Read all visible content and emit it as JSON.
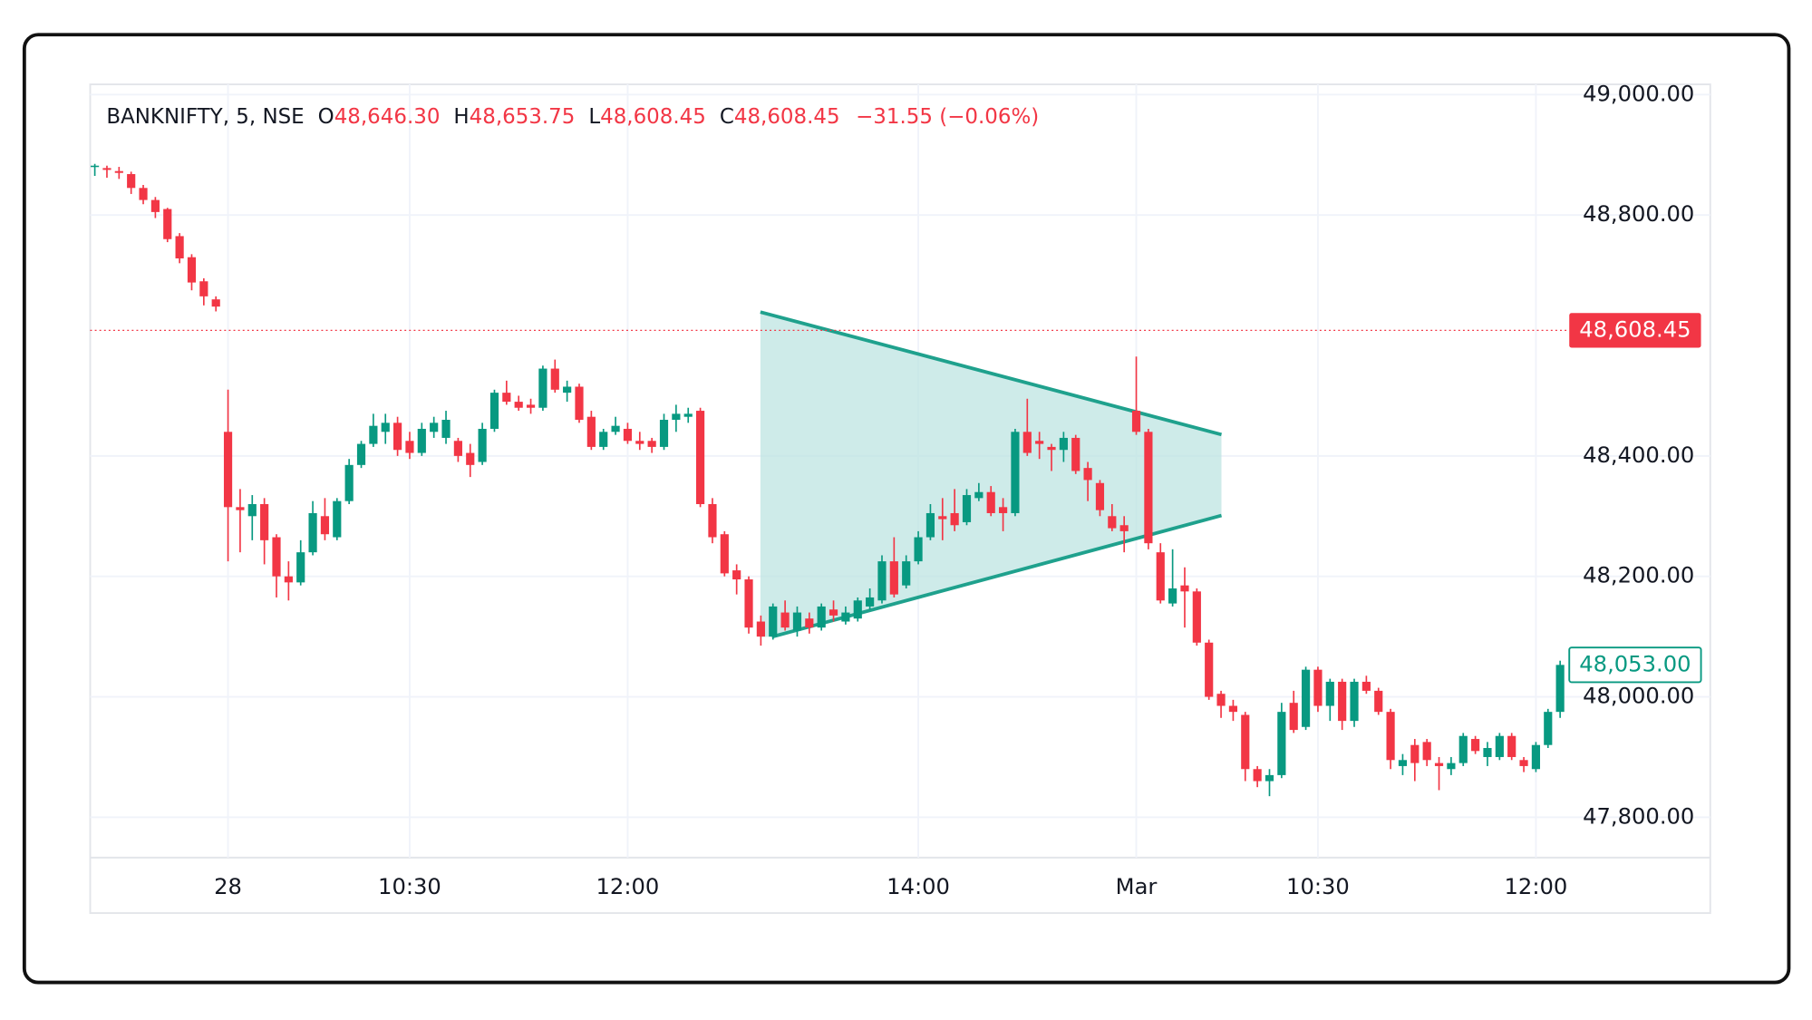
{
  "chart_data": {
    "type": "candlestick",
    "header": {
      "symbol": "BANKNIFTY, 5, NSE",
      "open_label": "O",
      "open": "48,646.30",
      "high_label": "H",
      "high": "48,653.75",
      "low_label": "L",
      "low": "48,608.45",
      "close_label": "C",
      "close": "48,608.45",
      "change": "−31.55 (−0.06%)"
    },
    "categories": [
      null,
      null,
      null,
      null,
      null,
      null,
      null,
      null,
      null,
      null,
      null,
      "28",
      null,
      null,
      null,
      null,
      null,
      null,
      null,
      null,
      null,
      null,
      null,
      null,
      null,
      null,
      "10:30",
      null,
      null,
      null,
      null,
      null,
      null,
      null,
      null,
      null,
      null,
      null,
      null,
      null,
      null,
      null,
      null,
      null,
      "12:00",
      null,
      null,
      null,
      null,
      null,
      null,
      null,
      null,
      null,
      null,
      null,
      null,
      null,
      null,
      null,
      null,
      null,
      null,
      null,
      null,
      null,
      null,
      null,
      "14:00",
      null,
      null,
      null,
      null,
      null,
      null,
      null,
      null,
      null,
      null,
      null,
      null,
      null,
      null,
      null,
      null,
      null,
      "Mar",
      null,
      null,
      null,
      null,
      null,
      null,
      null,
      null,
      null,
      null,
      null,
      null,
      null,
      null,
      "10:30",
      null,
      null,
      null,
      null,
      null,
      null,
      null,
      null,
      null,
      null,
      null,
      null,
      null,
      null,
      null,
      null,
      null,
      "12:00",
      null,
      null
    ],
    "open": [
      48880,
      48878,
      48873,
      48868,
      48845,
      48825,
      48810,
      48765,
      48730,
      48690,
      48660,
      48440,
      48315,
      48300,
      48320,
      48265,
      48200,
      48190,
      48240,
      48300,
      48265,
      48325,
      48385,
      48420,
      48440,
      48455,
      48425,
      48405,
      48440,
      48430,
      48425,
      48405,
      48390,
      48445,
      48505,
      48490,
      48485,
      48480,
      48545,
      48505,
      48515,
      48465,
      48415,
      48440,
      48445,
      48425,
      48425,
      48415,
      48460,
      48465,
      48475,
      48320,
      48270,
      48210,
      48195,
      48125,
      48100,
      48140,
      48110,
      48130,
      48115,
      48145,
      48125,
      48130,
      48150,
      48160,
      48225,
      48185,
      48225,
      48265,
      48300,
      48305,
      48290,
      48330,
      48340,
      48315,
      48305,
      48440,
      48425,
      48415,
      48410,
      48430,
      48380,
      48355,
      48300,
      48285,
      48475,
      48440,
      48240,
      48155,
      48185,
      48175,
      48090,
      48005,
      47985,
      47970,
      47880,
      47860,
      47870,
      47990,
      47950,
      48045,
      47985,
      48025,
      47960,
      48025,
      48010,
      47975,
      47885,
      47920,
      47925,
      47890,
      47880,
      47890,
      47930,
      47900,
      47900,
      47935,
      47895,
      47880,
      47920,
      47975
    ],
    "high": [
      48885,
      48882,
      48880,
      48872,
      48850,
      48830,
      48812,
      48770,
      48735,
      48695,
      48665,
      48510,
      48345,
      48335,
      48330,
      48270,
      48225,
      48260,
      48325,
      48330,
      48330,
      48395,
      48425,
      48470,
      48470,
      48465,
      48440,
      48455,
      48465,
      48475,
      48430,
      48420,
      48455,
      48510,
      48525,
      48500,
      48495,
      48550,
      48560,
      48525,
      48520,
      48475,
      48445,
      48465,
      48455,
      48440,
      48430,
      48470,
      48485,
      48480,
      48480,
      48330,
      48275,
      48220,
      48200,
      48135,
      48155,
      48160,
      48150,
      48140,
      48155,
      48160,
      48150,
      48165,
      48180,
      48235,
      48265,
      48235,
      48275,
      48320,
      48330,
      48345,
      48345,
      48355,
      48350,
      48330,
      48445,
      48495,
      48440,
      48420,
      48440,
      48435,
      48390,
      48360,
      48320,
      48300,
      48565,
      48445,
      48255,
      48245,
      48215,
      48180,
      48095,
      48010,
      47995,
      47975,
      47885,
      47880,
      47990,
      48010,
      48050,
      48050,
      48030,
      48030,
      48030,
      48035,
      48015,
      47980,
      47905,
      47930,
      47930,
      47900,
      47900,
      47940,
      47935,
      47925,
      47940,
      47940,
      47900,
      47925,
      47980,
      48060
    ],
    "low": [
      48865,
      48862,
      48860,
      48835,
      48818,
      48795,
      48755,
      48720,
      48675,
      48650,
      48640,
      48225,
      48240,
      48260,
      48220,
      48165,
      48160,
      48185,
      48235,
      48260,
      48260,
      48320,
      48380,
      48415,
      48420,
      48400,
      48395,
      48400,
      48430,
      48420,
      48390,
      48365,
      48385,
      48440,
      48485,
      48475,
      48470,
      48475,
      48505,
      48490,
      48455,
      48410,
      48410,
      48435,
      48420,
      48410,
      48405,
      48410,
      48440,
      48455,
      48315,
      48255,
      48200,
      48170,
      48105,
      48085,
      48095,
      48110,
      48100,
      48105,
      48110,
      48125,
      48120,
      48125,
      48145,
      48155,
      48165,
      48180,
      48220,
      48260,
      48260,
      48275,
      48285,
      48325,
      48300,
      48275,
      48300,
      48400,
      48395,
      48375,
      48390,
      48370,
      48325,
      48300,
      48275,
      48240,
      48435,
      48245,
      48155,
      48150,
      48115,
      48085,
      47995,
      47965,
      47960,
      47860,
      47850,
      47835,
      47865,
      47940,
      47945,
      47975,
      47960,
      47945,
      47950,
      48005,
      47970,
      47880,
      47870,
      47860,
      47885,
      47845,
      47870,
      47885,
      47905,
      47885,
      47895,
      47895,
      47875,
      47875,
      47915,
      47965
    ],
    "close": [
      48882,
      48875,
      48870,
      48845,
      48825,
      48805,
      48760,
      48728,
      48688,
      48665,
      48648,
      48315,
      48310,
      48320,
      48260,
      48200,
      48190,
      48240,
      48305,
      48270,
      48325,
      48385,
      48420,
      48450,
      48455,
      48410,
      48405,
      48445,
      48455,
      48460,
      48400,
      48385,
      48445,
      48505,
      48490,
      48480,
      48480,
      48545,
      48510,
      48515,
      48460,
      48415,
      48440,
      48450,
      48425,
      48420,
      48415,
      48460,
      48470,
      48470,
      48320,
      48265,
      48205,
      48195,
      48115,
      48100,
      48150,
      48115,
      48140,
      48115,
      48150,
      48135,
      48140,
      48160,
      48165,
      48225,
      48170,
      48225,
      48265,
      48305,
      48295,
      48285,
      48335,
      48340,
      48305,
      48305,
      48440,
      48405,
      48420,
      48410,
      48430,
      48375,
      48360,
      48310,
      48280,
      48275,
      48440,
      48255,
      48160,
      48180,
      48175,
      48090,
      48000,
      47985,
      47975,
      47880,
      47860,
      47870,
      47975,
      47945,
      48045,
      47985,
      48025,
      47960,
      48025,
      48010,
      47975,
      47895,
      47895,
      47890,
      47895,
      47885,
      47890,
      47935,
      47910,
      47915,
      47935,
      47900,
      47885,
      47920,
      47975,
      48053
    ],
    "up_color": "#089981",
    "down_color": "#f23645",
    "ylim": [
      47733,
      49017
    ],
    "yticks": [
      {
        "value": 47800,
        "label": "47,800.00"
      },
      {
        "value": 48000,
        "label": "48,000.00"
      },
      {
        "value": 48200,
        "label": "48,200.00"
      },
      {
        "value": 48400,
        "label": "48,400.00"
      },
      {
        "value": 48800,
        "label": "48,800.00"
      },
      {
        "value": 49000,
        "label": "49,000.00"
      }
    ],
    "grid": true,
    "reference_line": {
      "value": 48608.45,
      "label": "48,608.45",
      "color": "#f23645"
    },
    "last_price": {
      "value": 48053,
      "label": "48,053.00",
      "color": "#089981"
    }
  }
}
